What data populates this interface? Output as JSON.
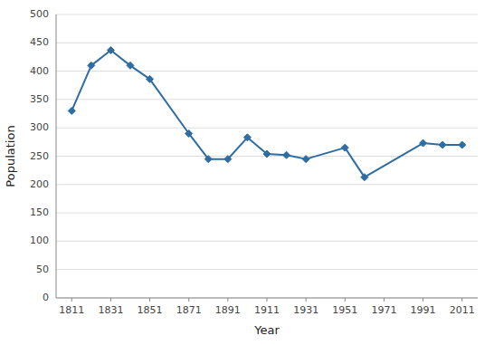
{
  "chart_data": {
    "type": "line",
    "x": [
      1811,
      1821,
      1831,
      1841,
      1851,
      1871,
      1881,
      1891,
      1901,
      1911,
      1921,
      1931,
      1951,
      1961,
      1991,
      2001,
      2011
    ],
    "values": [
      330,
      410,
      437,
      410,
      386,
      290,
      245,
      245,
      283,
      254,
      252,
      245,
      265,
      213,
      273,
      270,
      270
    ],
    "color": "#2E6DA4",
    "marker": "diamond",
    "xlabel": "Year",
    "ylabel": "Population",
    "xlim": [
      1803,
      2019
    ],
    "xticks": [
      1811,
      1831,
      1851,
      1871,
      1891,
      1911,
      1931,
      1951,
      1971,
      1991,
      2011
    ],
    "ylim": [
      0,
      500
    ],
    "yticks": [
      0,
      50,
      100,
      150,
      200,
      250,
      300,
      350,
      400,
      450,
      500
    ],
    "grid": true
  }
}
